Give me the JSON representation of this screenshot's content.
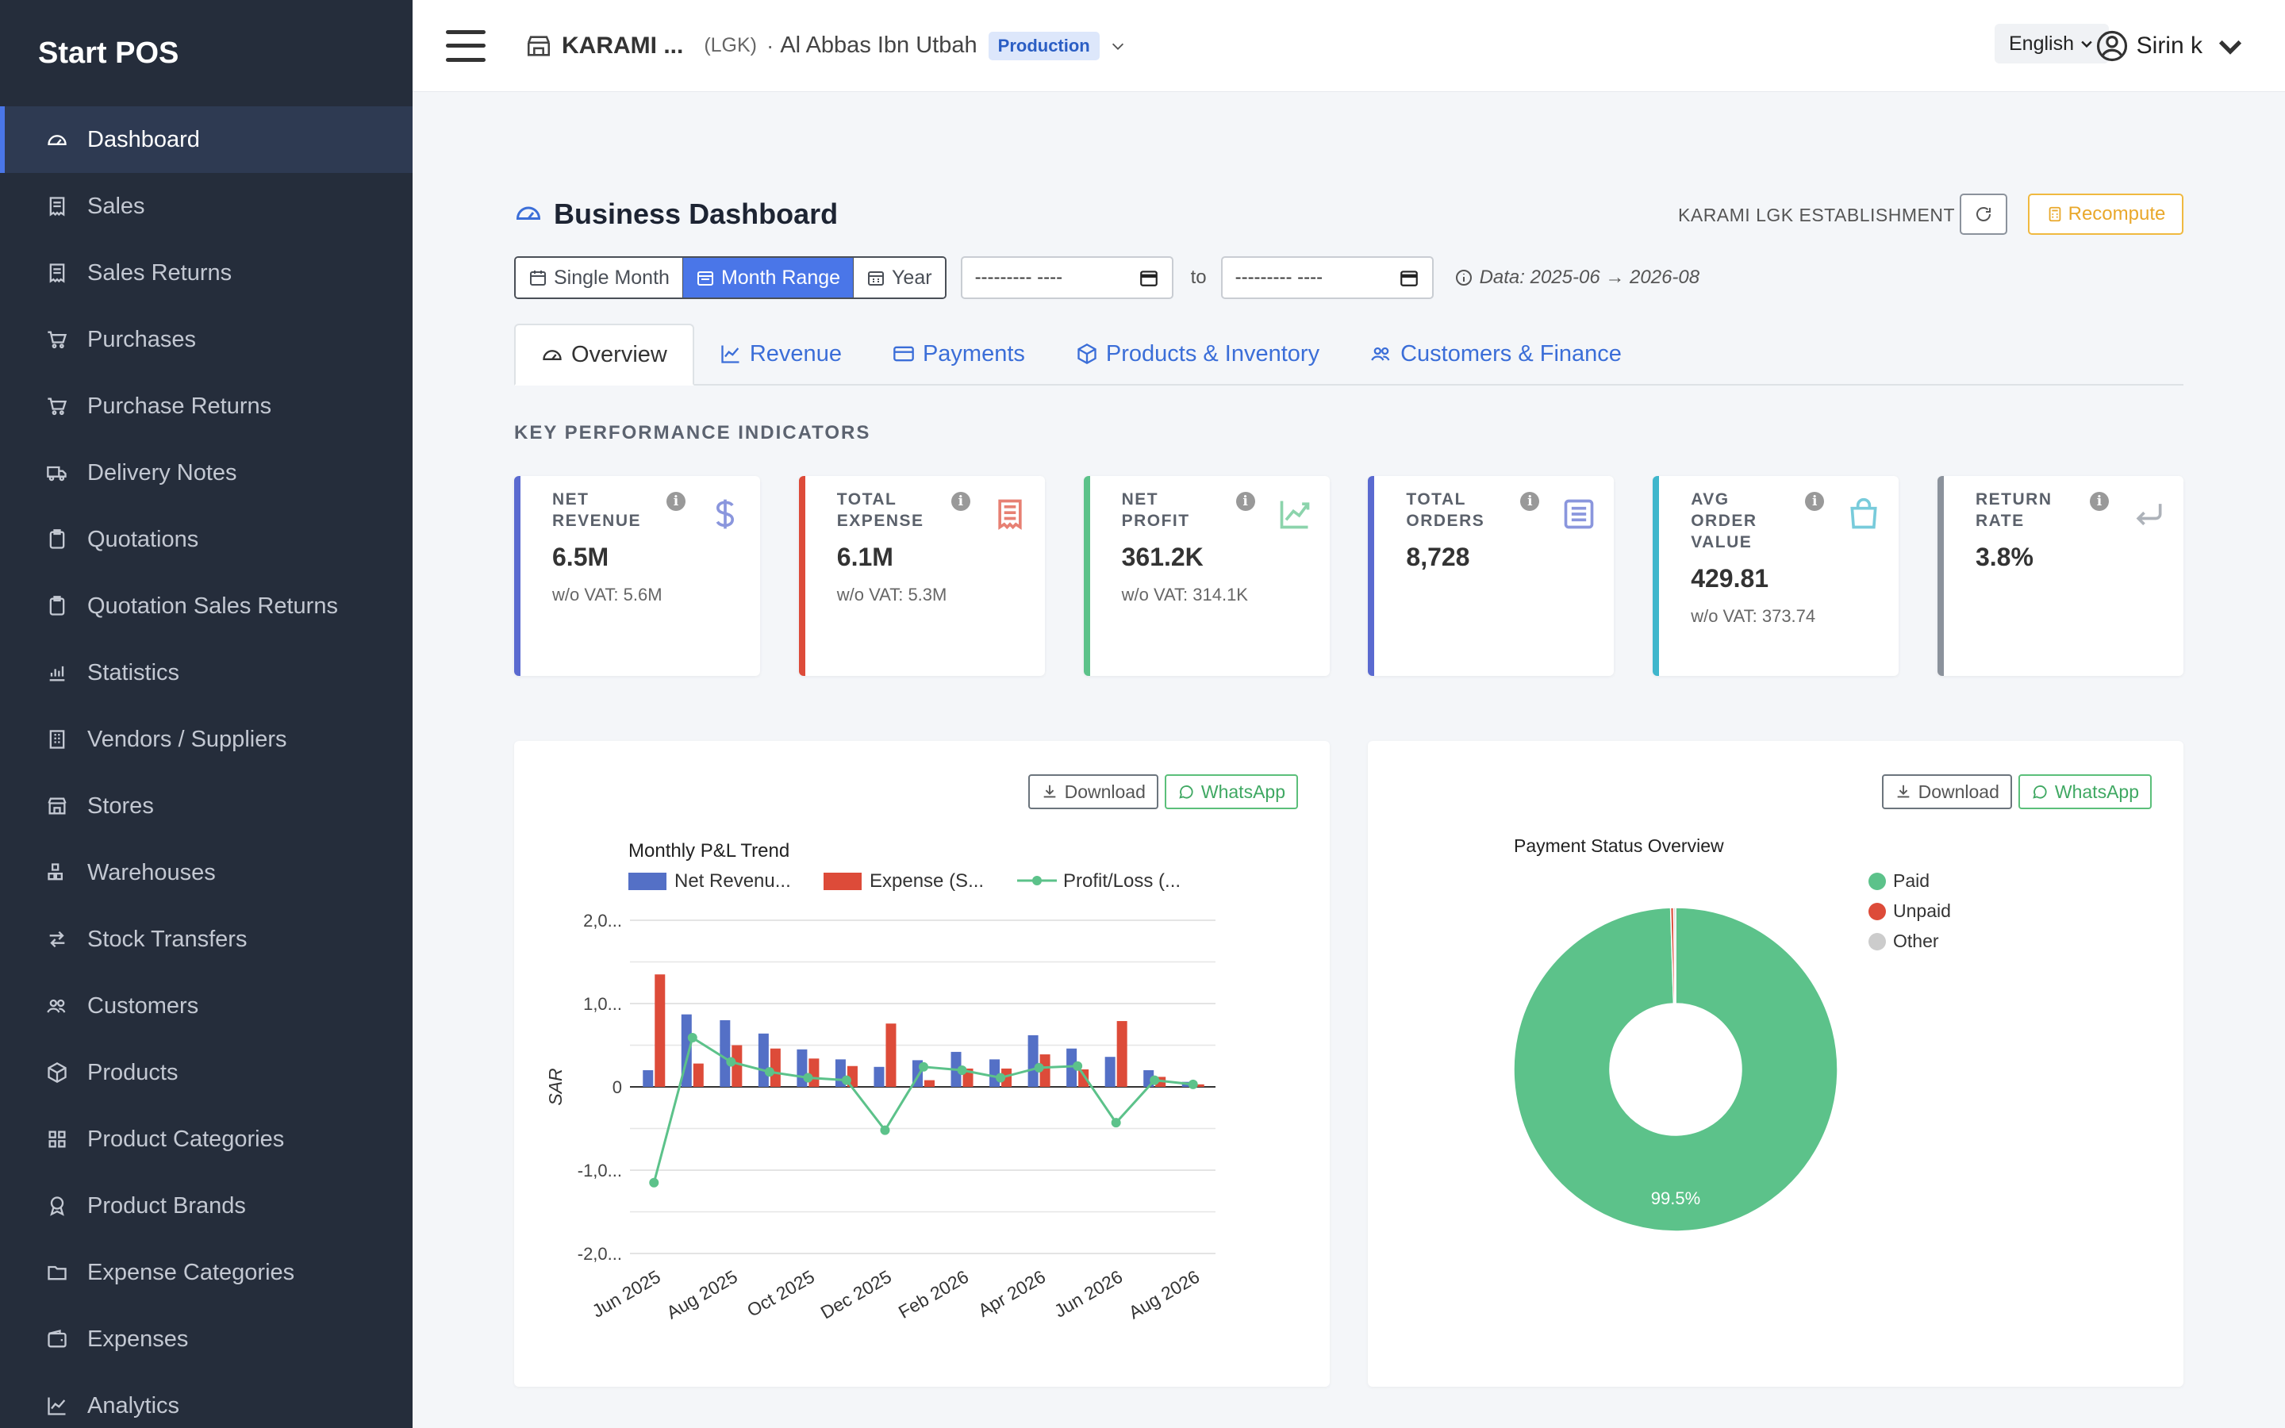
{
  "app": {
    "brand": "Start POS"
  },
  "sidebar": {
    "items": [
      {
        "label": "Dashboard",
        "icon": "gauge-icon",
        "active": true
      },
      {
        "label": "Sales",
        "icon": "receipt-icon"
      },
      {
        "label": "Sales Returns",
        "icon": "receipt-icon"
      },
      {
        "label": "Purchases",
        "icon": "cart-icon"
      },
      {
        "label": "Purchase Returns",
        "icon": "cart-icon"
      },
      {
        "label": "Delivery Notes",
        "icon": "truck-icon"
      },
      {
        "label": "Quotations",
        "icon": "clipboard-icon"
      },
      {
        "label": "Quotation Sales Returns",
        "icon": "clipboard-icon"
      },
      {
        "label": "Statistics",
        "icon": "bar-chart-icon"
      },
      {
        "label": "Vendors / Suppliers",
        "icon": "building-icon"
      },
      {
        "label": "Stores",
        "icon": "shop-icon"
      },
      {
        "label": "Warehouses",
        "icon": "boxes-icon"
      },
      {
        "label": "Stock Transfers",
        "icon": "arrows-icon"
      },
      {
        "label": "Customers",
        "icon": "people-icon"
      },
      {
        "label": "Products",
        "icon": "box-icon"
      },
      {
        "label": "Product Categories",
        "icon": "grid-icon"
      },
      {
        "label": "Product Brands",
        "icon": "award-icon"
      },
      {
        "label": "Expense Categories",
        "icon": "folder-icon"
      },
      {
        "label": "Expenses",
        "icon": "wallet-icon"
      },
      {
        "label": "Analytics",
        "icon": "graph-icon"
      }
    ]
  },
  "topbar": {
    "store_name": "KARAMI ...",
    "store_code": "(LGK)",
    "separator": "·",
    "branch": "Al Abbas Ibn Utbah",
    "env_badge": "Production",
    "language": "English",
    "user": "Sirin k"
  },
  "dashboard": {
    "title": "Business Dashboard",
    "establishment": "KARAMI LGK ESTABLISHMENT",
    "recompute": "Recompute",
    "filters": {
      "single_month": "Single Month",
      "month_range": "Month Range",
      "year": "Year",
      "from_placeholder": "--------- ----",
      "to_label": "to",
      "to_placeholder": "--------- ----",
      "data_range": "Data: 2025-06 → 2026-08"
    },
    "tabs": [
      "Overview",
      "Revenue",
      "Payments",
      "Products & Inventory",
      "Customers & Finance"
    ],
    "kpi_heading": "KEY PERFORMANCE INDICATORS",
    "kpis": [
      {
        "label": "NET REVENUE",
        "value": "6.5M",
        "sub": "w/o VAT: 5.6M",
        "color": "#5a6ad0",
        "icon": "dollar-icon"
      },
      {
        "label": "TOTAL EXPENSE",
        "value": "6.1M",
        "sub": "w/o VAT: 5.3M",
        "color": "#dd4b39",
        "icon": "receipt-icon"
      },
      {
        "label": "NET PROFIT",
        "value": "361.2K",
        "sub": "w/o VAT: 314.1K",
        "color": "#5cc28a",
        "icon": "trend-icon"
      },
      {
        "label": "TOTAL ORDERS",
        "value": "8,728",
        "sub": "",
        "color": "#5a6ad0",
        "icon": "list-icon"
      },
      {
        "label": "AVG ORDER VALUE",
        "value": "429.81",
        "sub": "w/o VAT: 373.74",
        "color": "#3fb6cc",
        "icon": "bag-icon"
      },
      {
        "label": "RETURN RATE",
        "value": "3.8%",
        "sub": "",
        "color": "#8b929c",
        "icon": "return-icon"
      }
    ],
    "chart_buttons": {
      "download": "Download",
      "whatsapp": "WhatsApp"
    }
  },
  "chart_data": [
    {
      "type": "bar",
      "title": "Monthly P&L Trend",
      "ylabel": "SAR",
      "ylim": [
        -2000000,
        2000000
      ],
      "ytick_labels": [
        "2,0...",
        "1,0...",
        "0",
        "-1,0...",
        "-2,0..."
      ],
      "ytick_values": [
        2000000,
        1000000,
        0,
        -1000000,
        -2000000
      ],
      "legend": [
        "Net Revenu...",
        "Expense (S...",
        "Profit/Loss (..."
      ],
      "xtick_labels": [
        "Jun 2025",
        "Aug 2025",
        "Oct 2025",
        "Dec 2025",
        "Feb 2026",
        "Apr 2026",
        "Jun 2026",
        "Aug 2026"
      ],
      "categories": [
        "Jun 2025",
        "Jul 2025",
        "Aug 2025",
        "Sep 2025",
        "Oct 2025",
        "Nov 2025",
        "Dec 2025",
        "Jan 2026",
        "Feb 2026",
        "Mar 2026",
        "Apr 2026",
        "May 2026",
        "Jun 2026",
        "Jul 2026",
        "Aug 2026"
      ],
      "series": [
        {
          "name": "Net Revenu...",
          "type": "bar",
          "color": "#5470c6",
          "values": [
            200000,
            870000,
            800000,
            640000,
            450000,
            330000,
            240000,
            320000,
            420000,
            330000,
            620000,
            460000,
            360000,
            200000,
            60000
          ]
        },
        {
          "name": "Expense (S...",
          "type": "bar",
          "color": "#dd4b39",
          "values": [
            1350000,
            280000,
            500000,
            460000,
            340000,
            250000,
            760000,
            80000,
            220000,
            220000,
            390000,
            210000,
            790000,
            120000,
            30000
          ]
        },
        {
          "name": "Profit/Loss (...",
          "type": "line",
          "color": "#5cc28a",
          "values": [
            -1150000,
            590000,
            300000,
            180000,
            110000,
            80000,
            -520000,
            240000,
            200000,
            110000,
            230000,
            250000,
            -430000,
            80000,
            30000
          ]
        }
      ],
      "grid": true
    },
    {
      "type": "pie",
      "title": "Payment Status Overview",
      "labels": [
        "Paid",
        "Unpaid",
        "Other"
      ],
      "values": [
        99.5,
        0.3,
        0.2
      ],
      "colors": [
        "#5cc28a",
        "#dd4b39",
        "#cccccc"
      ],
      "data_label": "99.5%",
      "legend_position": "right"
    }
  ]
}
